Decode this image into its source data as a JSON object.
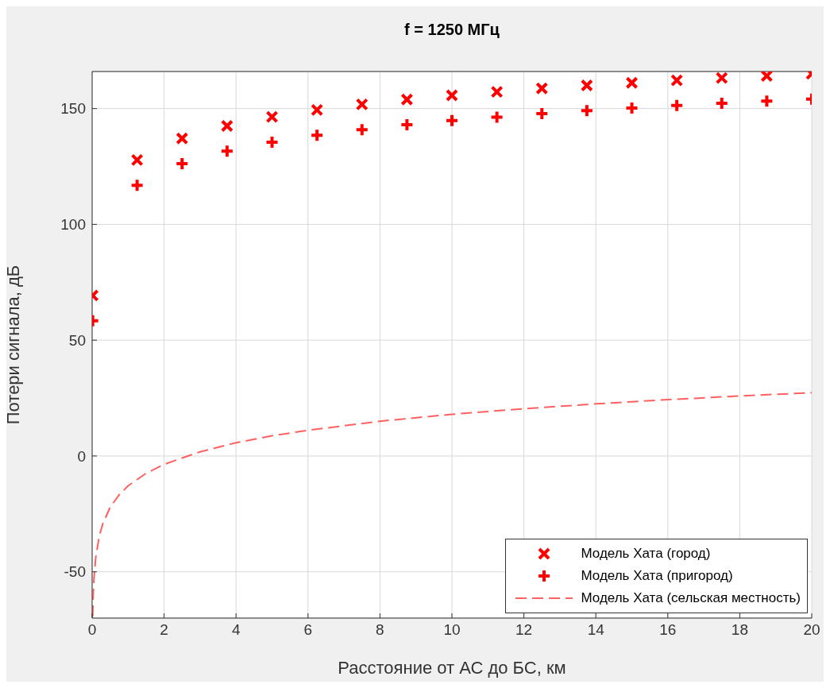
{
  "chart_data": {
    "type": "scatter",
    "title": "f = 1250 МГц",
    "xlabel": "Расстояние от АС до БС, км",
    "ylabel": "Потери сигнала, дБ",
    "xlim": [
      0,
      20
    ],
    "xticks": [
      0,
      2,
      4,
      6,
      8,
      10,
      12,
      14,
      16,
      18,
      20
    ],
    "ylim": [
      -70,
      166
    ],
    "yticks": [
      -50,
      0,
      50,
      100,
      150
    ],
    "grid": true,
    "legend": "bottom right",
    "series": [
      {
        "name": "Модель Хата (город)",
        "marker": "x",
        "color": "#ff0000",
        "x": [
          0.015,
          1.25,
          2.5,
          3.75,
          5,
          6.25,
          7.5,
          8.75,
          10,
          11.25,
          12.5,
          13.75,
          15,
          16.25,
          17.5,
          18.75,
          20
        ],
        "values": [
          69.3,
          127.8,
          137.1,
          142.5,
          146.4,
          149.4,
          151.8,
          153.9,
          155.7,
          157.2,
          158.7,
          160.0,
          161.1,
          162.2,
          163.2,
          164.1,
          165.0
        ]
      },
      {
        "name": "Модель Хата (пригород)",
        "marker": "cross",
        "color": "#ff0000",
        "x": [
          0.015,
          1.25,
          2.5,
          3.75,
          5,
          6.25,
          7.5,
          8.75,
          10,
          11.25,
          12.5,
          13.75,
          15,
          16.25,
          17.5,
          18.75,
          20
        ],
        "values": [
          58.4,
          116.9,
          126.2,
          131.6,
          135.5,
          138.5,
          140.9,
          143.0,
          144.8,
          146.3,
          147.8,
          149.1,
          150.2,
          151.3,
          152.3,
          153.2,
          154.1
        ]
      },
      {
        "name": "Модель Хата (сельская местность)",
        "type": "line",
        "marker": "none",
        "line_style": "dashed",
        "color": "#ff6060",
        "x": [
          0.015,
          0.03,
          0.05,
          0.1,
          0.2,
          0.3,
          0.5,
          0.75,
          1,
          1.5,
          2,
          3,
          4,
          5,
          6,
          8,
          10,
          12,
          14,
          16,
          18,
          20
        ],
        "values": [
          -69.3,
          -60.0,
          -53.1,
          -43.8,
          -34.5,
          -29.1,
          -22.2,
          -16.8,
          -12.9,
          -7.5,
          -3.6,
          1.8,
          5.7,
          8.7,
          11.1,
          15.0,
          18.0,
          20.4,
          22.5,
          24.3,
          25.9,
          27.3
        ]
      }
    ]
  }
}
